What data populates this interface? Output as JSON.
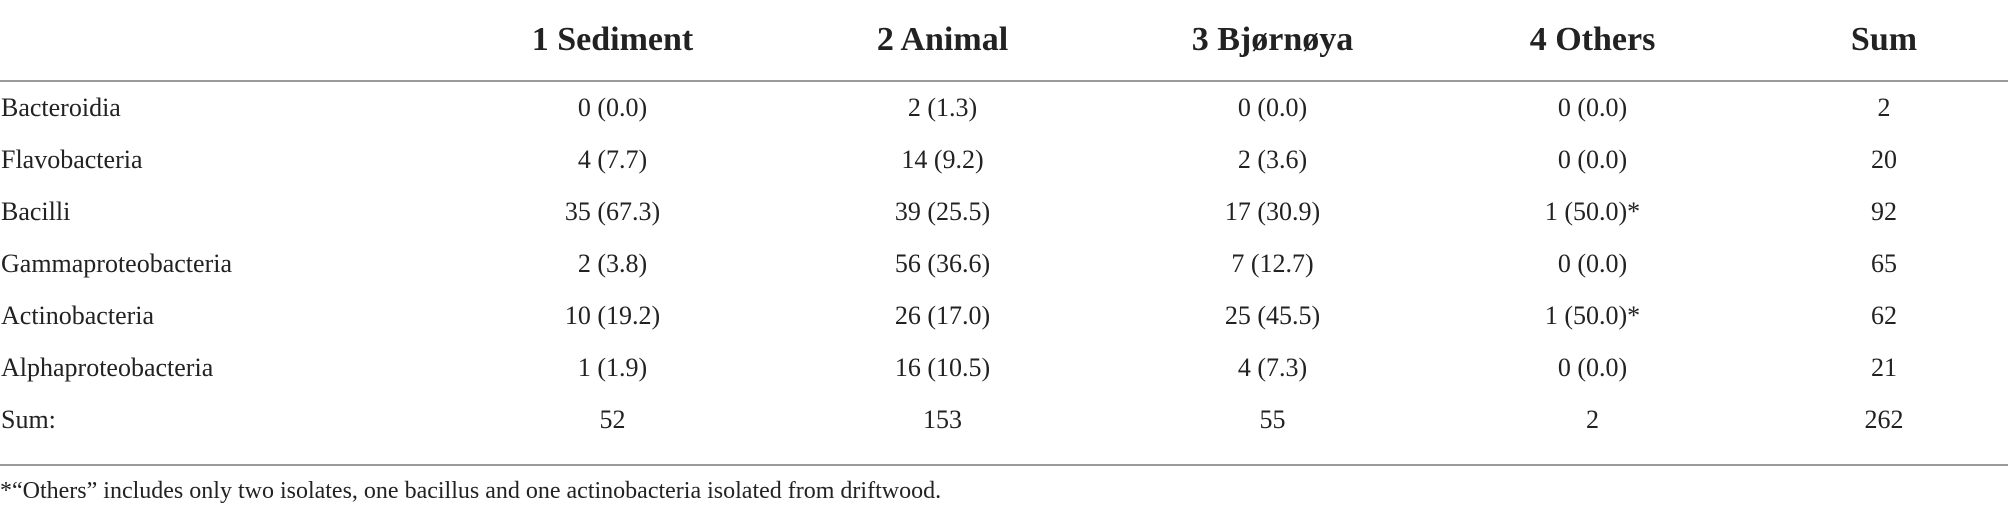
{
  "table": {
    "headers": [
      "",
      "1 Sediment",
      "2 Animal",
      "3 Bjørnøya",
      "4 Others",
      "Sum"
    ],
    "rows": [
      {
        "label": "Bacteroidia",
        "cells": [
          "0 (0.0)",
          "2 (1.3)",
          "0 (0.0)",
          "0 (0.0)",
          "2"
        ]
      },
      {
        "label": "Flavobacteria",
        "cells": [
          "4 (7.7)",
          "14 (9.2)",
          "2 (3.6)",
          "0 (0.0)",
          "20"
        ]
      },
      {
        "label": "Bacilli",
        "cells": [
          "35 (67.3)",
          "39 (25.5)",
          "17 (30.9)",
          "1 (50.0)*",
          "92"
        ]
      },
      {
        "label": "Gammaproteobacteria",
        "cells": [
          "2 (3.8)",
          "56 (36.6)",
          "7 (12.7)",
          "0 (0.0)",
          "65"
        ]
      },
      {
        "label": "Actinobacteria",
        "cells": [
          "10 (19.2)",
          "26 (17.0)",
          "25 (45.5)",
          "1 (50.0)*",
          "62"
        ]
      },
      {
        "label": "Alphaproteobacteria",
        "cells": [
          "1 (1.9)",
          "16 (10.5)",
          "4 (7.3)",
          "0 (0.0)",
          "21"
        ]
      },
      {
        "label": "Sum:",
        "cells": [
          "52",
          "153",
          "55",
          "2",
          "262"
        ]
      }
    ]
  },
  "footnote": "*“Others” includes only two isolates, one bacillus and one actinobacteria isolated from driftwood."
}
